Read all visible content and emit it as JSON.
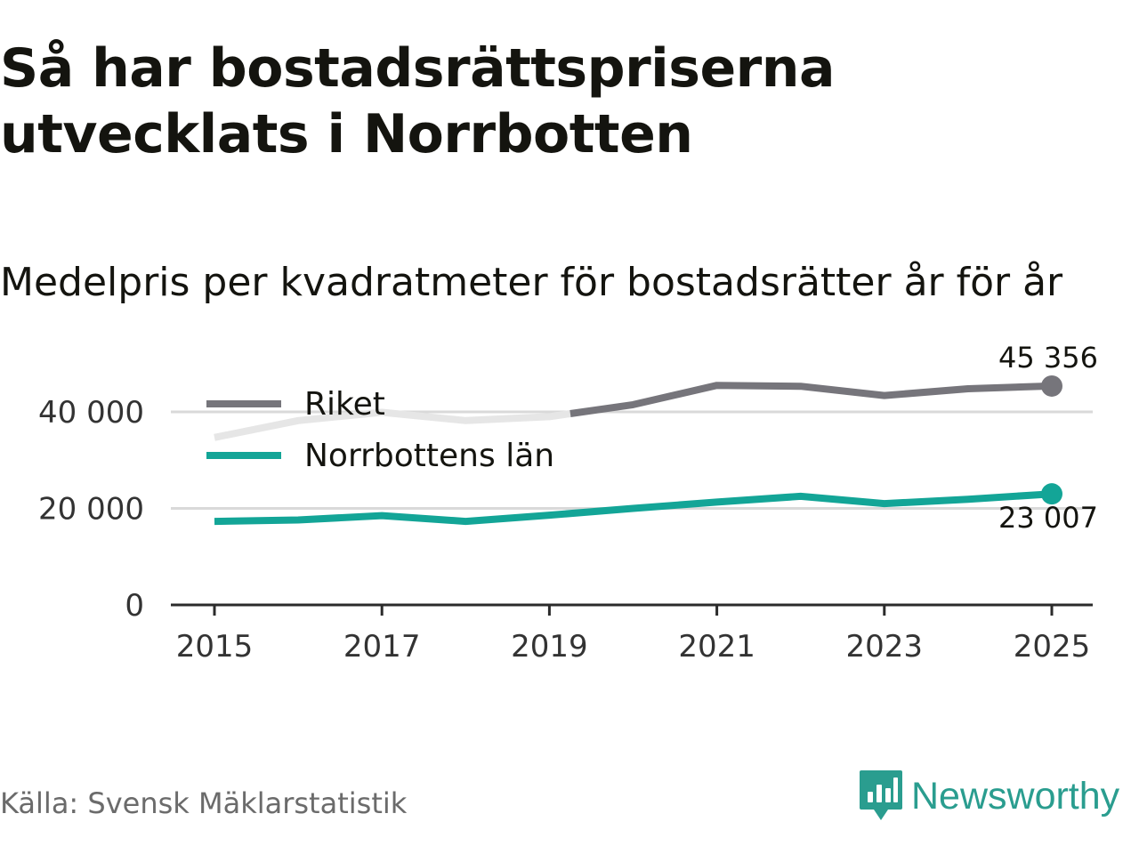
{
  "title": "Så har bostadsrättspriserna utvecklats i Norrbotten",
  "subtitle": "Medelpris per kvadratmeter för bostadsrätter år för år",
  "source": "Källa: Svensk Mäklarstatistik",
  "brand": {
    "name": "Newsworthy",
    "icon": "newsworthy-logo-icon"
  },
  "colors": {
    "riket": "#76757b",
    "riket_faded": "#e6e6e6",
    "norrbotten": "#13a597",
    "grid": "#d9d9d9",
    "axis": "#2b2b2b",
    "text": "#14140f",
    "muted": "#6b6b6b",
    "brand": "#2a9d8f"
  },
  "chart_data": {
    "type": "line",
    "x": [
      2015,
      2016,
      2017,
      2018,
      2019,
      2020,
      2021,
      2022,
      2023,
      2024,
      2025
    ],
    "x_tick_labels": [
      "2015",
      "2017",
      "2019",
      "2021",
      "2023",
      "2025"
    ],
    "y_ticks": [
      0,
      20000,
      40000
    ],
    "y_tick_labels": [
      "0",
      "20 000",
      "40 000"
    ],
    "ylim": [
      0,
      52000
    ],
    "grid": true,
    "legend_placement": "top-left",
    "series": [
      {
        "key": "riket",
        "name": "Riket",
        "values": [
          34700,
          38200,
          39900,
          38200,
          39000,
          41500,
          45500,
          45300,
          43400,
          44800,
          45356
        ],
        "faded_until_x": 2019.25,
        "end_label": "45 356"
      },
      {
        "key": "norrbotten",
        "name": "Norrbottens län",
        "values": [
          17300,
          17600,
          18500,
          17300,
          18600,
          20000,
          21300,
          22500,
          21000,
          21900,
          23007
        ],
        "end_label": "23 007"
      }
    ]
  }
}
